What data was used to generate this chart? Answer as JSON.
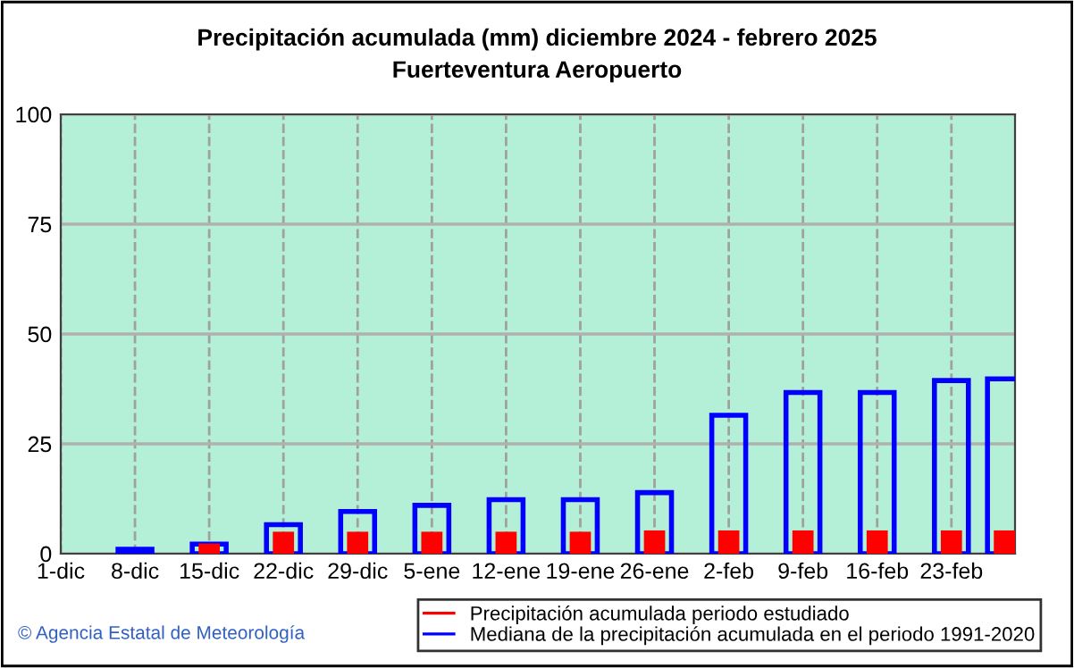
{
  "chart_data": {
    "type": "bar",
    "title": "Precipitación acumulada (mm) diciembre 2024 - febrero 2025",
    "subtitle": "Fuerteventura Aeropuerto",
    "x": [
      "2024-12-08",
      "2024-12-15",
      "2024-12-22",
      "2024-12-29",
      "2025-01-05",
      "2025-01-12",
      "2025-01-19",
      "2025-01-26",
      "2025-02-02",
      "2025-02-09",
      "2025-02-16",
      "2025-02-23",
      "2025-02-28"
    ],
    "series": [
      {
        "name": "Precipitación acumulada periodo estudiado",
        "color": "#ff0000",
        "values": [
          0,
          2.3,
          5.0,
          5.0,
          5.0,
          5.0,
          5.0,
          5.3,
          5.3,
          5.3,
          5.3,
          5.3,
          5.3
        ]
      },
      {
        "name": "Mediana de la precipitación acumulada en el periodo 1991-2020",
        "color": "#0000ff",
        "values": [
          1.0,
          2.2,
          6.6,
          9.6,
          11.0,
          12.3,
          12.3,
          13.9,
          31.5,
          36.7,
          36.7,
          39.4,
          39.8
        ]
      }
    ],
    "xlim": [
      "2024-12-01",
      "2025-03-01"
    ],
    "xticks": [
      {
        "value": "2024-12-01",
        "label": "1-dic"
      },
      {
        "value": "2024-12-08",
        "label": "8-dic"
      },
      {
        "value": "2024-12-15",
        "label": "15-dic"
      },
      {
        "value": "2024-12-22",
        "label": "22-dic"
      },
      {
        "value": "2024-12-29",
        "label": "29-dic"
      },
      {
        "value": "2025-01-05",
        "label": "5-ene"
      },
      {
        "value": "2025-01-12",
        "label": "12-ene"
      },
      {
        "value": "2025-01-19",
        "label": "19-ene"
      },
      {
        "value": "2025-01-26",
        "label": "26-ene"
      },
      {
        "value": "2025-02-02",
        "label": "2-feb"
      },
      {
        "value": "2025-02-09",
        "label": "9-feb"
      },
      {
        "value": "2025-02-16",
        "label": "16-feb"
      },
      {
        "value": "2025-02-23",
        "label": "23-feb"
      }
    ],
    "ylim": [
      0,
      100
    ],
    "yticks": [
      0,
      25,
      50,
      75,
      100
    ],
    "grid": true,
    "legend": "bottom",
    "annotations": [
      "© Agencia Estatal de Meteorología"
    ]
  }
}
